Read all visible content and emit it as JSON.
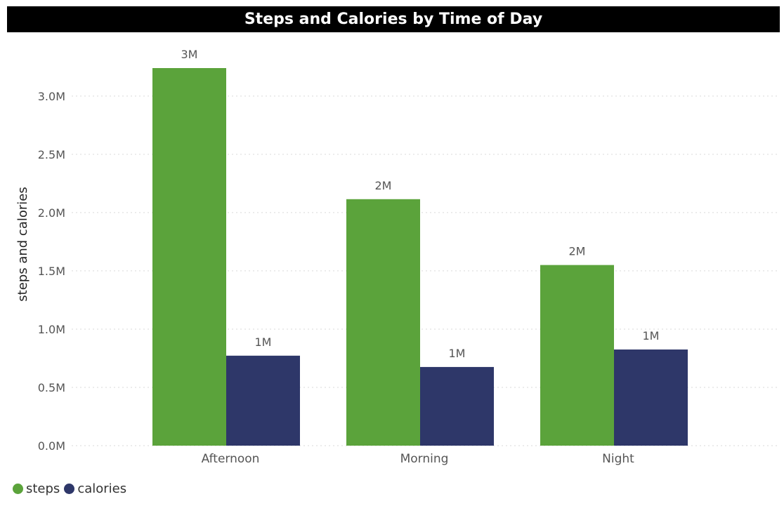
{
  "title": "Steps and Calories by Time of Day",
  "colors": {
    "steps": "#5BA33B",
    "calories": "#2E3769",
    "grid": "#d9d9d9",
    "text": "#555555"
  },
  "chart_data": {
    "type": "bar",
    "title": "Steps and Calories by Time of Day",
    "xlabel": "",
    "ylabel": "steps and calories",
    "categories": [
      "Afternoon",
      "Morning",
      "Night"
    ],
    "series": [
      {
        "name": "steps",
        "values": [
          3240000,
          2115000,
          1550000
        ],
        "labels": [
          "3M",
          "2M",
          "2M"
        ],
        "color": "#5BA33B"
      },
      {
        "name": "calories",
        "values": [
          772000,
          675000,
          825000
        ],
        "labels": [
          "1M",
          "1M",
          "1M"
        ],
        "color": "#2E3769"
      }
    ],
    "yticks": [
      {
        "value": 0,
        "label": "0.0M"
      },
      {
        "value": 500000,
        "label": "0.5M"
      },
      {
        "value": 1000000,
        "label": "1.0M"
      },
      {
        "value": 1500000,
        "label": "1.5M"
      },
      {
        "value": 2000000,
        "label": "2.0M"
      },
      {
        "value": 2500000,
        "label": "2.5M"
      },
      {
        "value": 3000000,
        "label": "3.0M"
      }
    ],
    "ylim": [
      0,
      3240000
    ],
    "grid": true,
    "legend_position": "bottom-left"
  },
  "legend": [
    {
      "label": "steps",
      "color": "#5BA33B"
    },
    {
      "label": "calories",
      "color": "#2E3769"
    }
  ]
}
